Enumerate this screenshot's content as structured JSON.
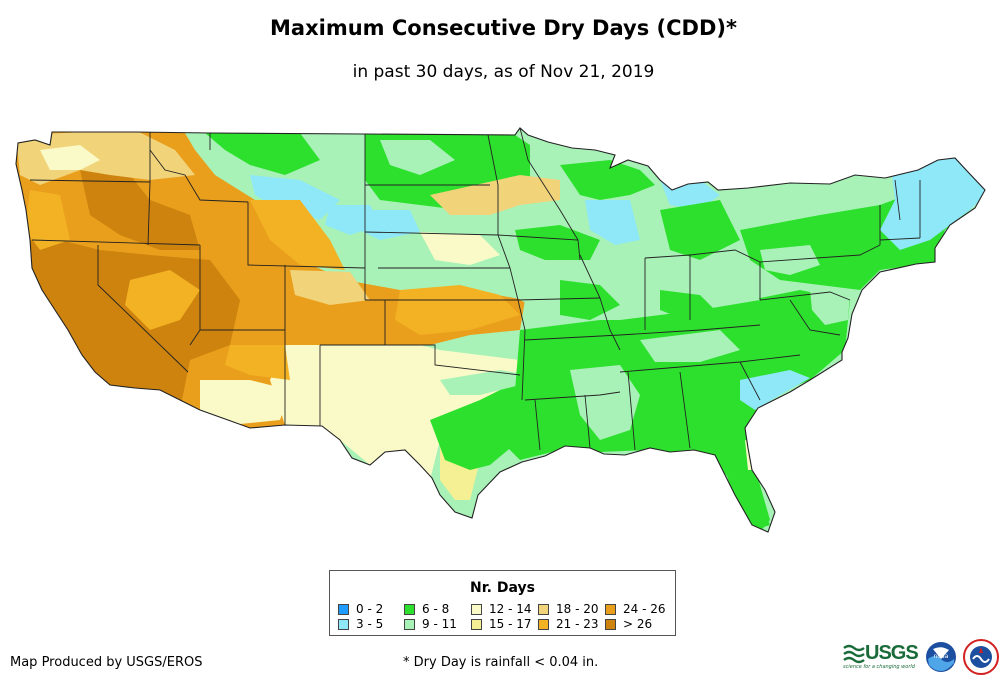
{
  "header": {
    "title": "Maximum Consecutive Dry Days (CDD)*",
    "subtitle": "in past 30 days, as of Nov 21, 2019"
  },
  "legend": {
    "title": "Nr. Days",
    "items": [
      {
        "label": "0 - 2",
        "color": "#1e9bff"
      },
      {
        "label": "3 - 5",
        "color": "#8fe8f7"
      },
      {
        "label": "6 - 8",
        "color": "#2ee02e"
      },
      {
        "label": "9 - 11",
        "color": "#a8f2b8"
      },
      {
        "label": "12 - 14",
        "color": "#fafac8"
      },
      {
        "label": "15 - 17",
        "color": "#f5f093"
      },
      {
        "label": "18 - 20",
        "color": "#f1d37a"
      },
      {
        "label": "21 - 23",
        "color": "#f2b224"
      },
      {
        "label": "24 - 26",
        "color": "#ea9f1c"
      },
      {
        "label": "> 26",
        "color": "#cd830e"
      }
    ]
  },
  "footer": {
    "credit": "Map Produced by USGS/EROS",
    "footnote": "* Dry Day is rainfall < 0.04 in."
  },
  "logos": {
    "usgs_text": "USGS",
    "usgs_tagline": "science for a changing world",
    "noaa_text": "noaa"
  },
  "colors": {
    "state_border": "#222222",
    "usgs_green": "#1a6b3a",
    "noaa_blue": "#1d4fa0"
  }
}
